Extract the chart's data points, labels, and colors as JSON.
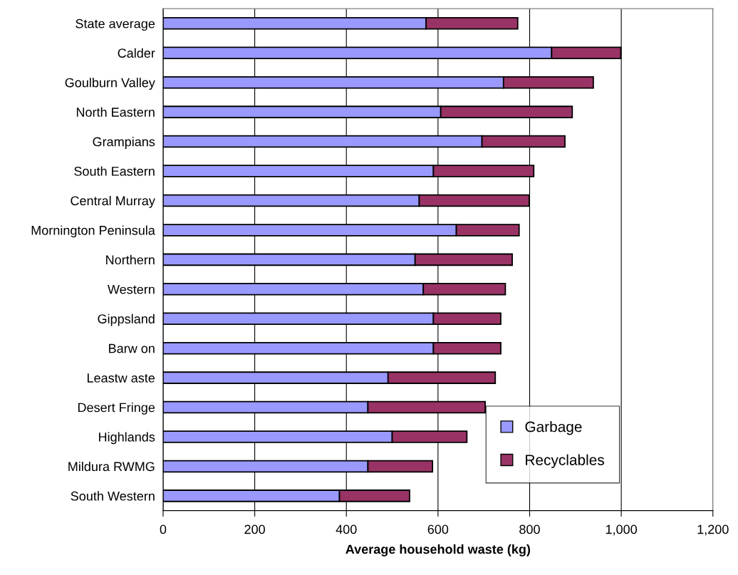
{
  "chart_data": {
    "type": "bar",
    "orientation": "horizontal",
    "stacked": true,
    "xlabel": "Average household waste (kg)",
    "categories": [
      "State average",
      "Calder",
      "Goulburn Valley",
      "North Eastern",
      "Grampians",
      "South Eastern",
      "Central Murray",
      "Mornington Peninsula",
      "Northern",
      "Western",
      "Gippsland",
      "Barw on",
      "Leastw aste",
      "Desert Fringe",
      "Highlands",
      "Mildura RWMG",
      "South Western"
    ],
    "series": [
      {
        "name": "Garbage",
        "color": "#9999ff",
        "values": [
          574,
          848,
          743,
          606,
          696,
          590,
          559,
          640,
          550,
          568,
          590,
          590,
          491,
          447,
          500,
          447,
          385
        ]
      },
      {
        "name": "Recyclables",
        "color": "#993366",
        "values": [
          200,
          151,
          196,
          287,
          181,
          219,
          240,
          137,
          212,
          179,
          147,
          147,
          234,
          256,
          163,
          141,
          153
        ]
      }
    ],
    "xlim": [
      0,
      1200
    ],
    "xticks": [
      0,
      200,
      400,
      600,
      800,
      {
        "value": 1000,
        "label": "1,000"
      },
      {
        "value": 1200,
        "label": "1,200"
      }
    ],
    "grid": "x",
    "legend": "bottom right"
  }
}
